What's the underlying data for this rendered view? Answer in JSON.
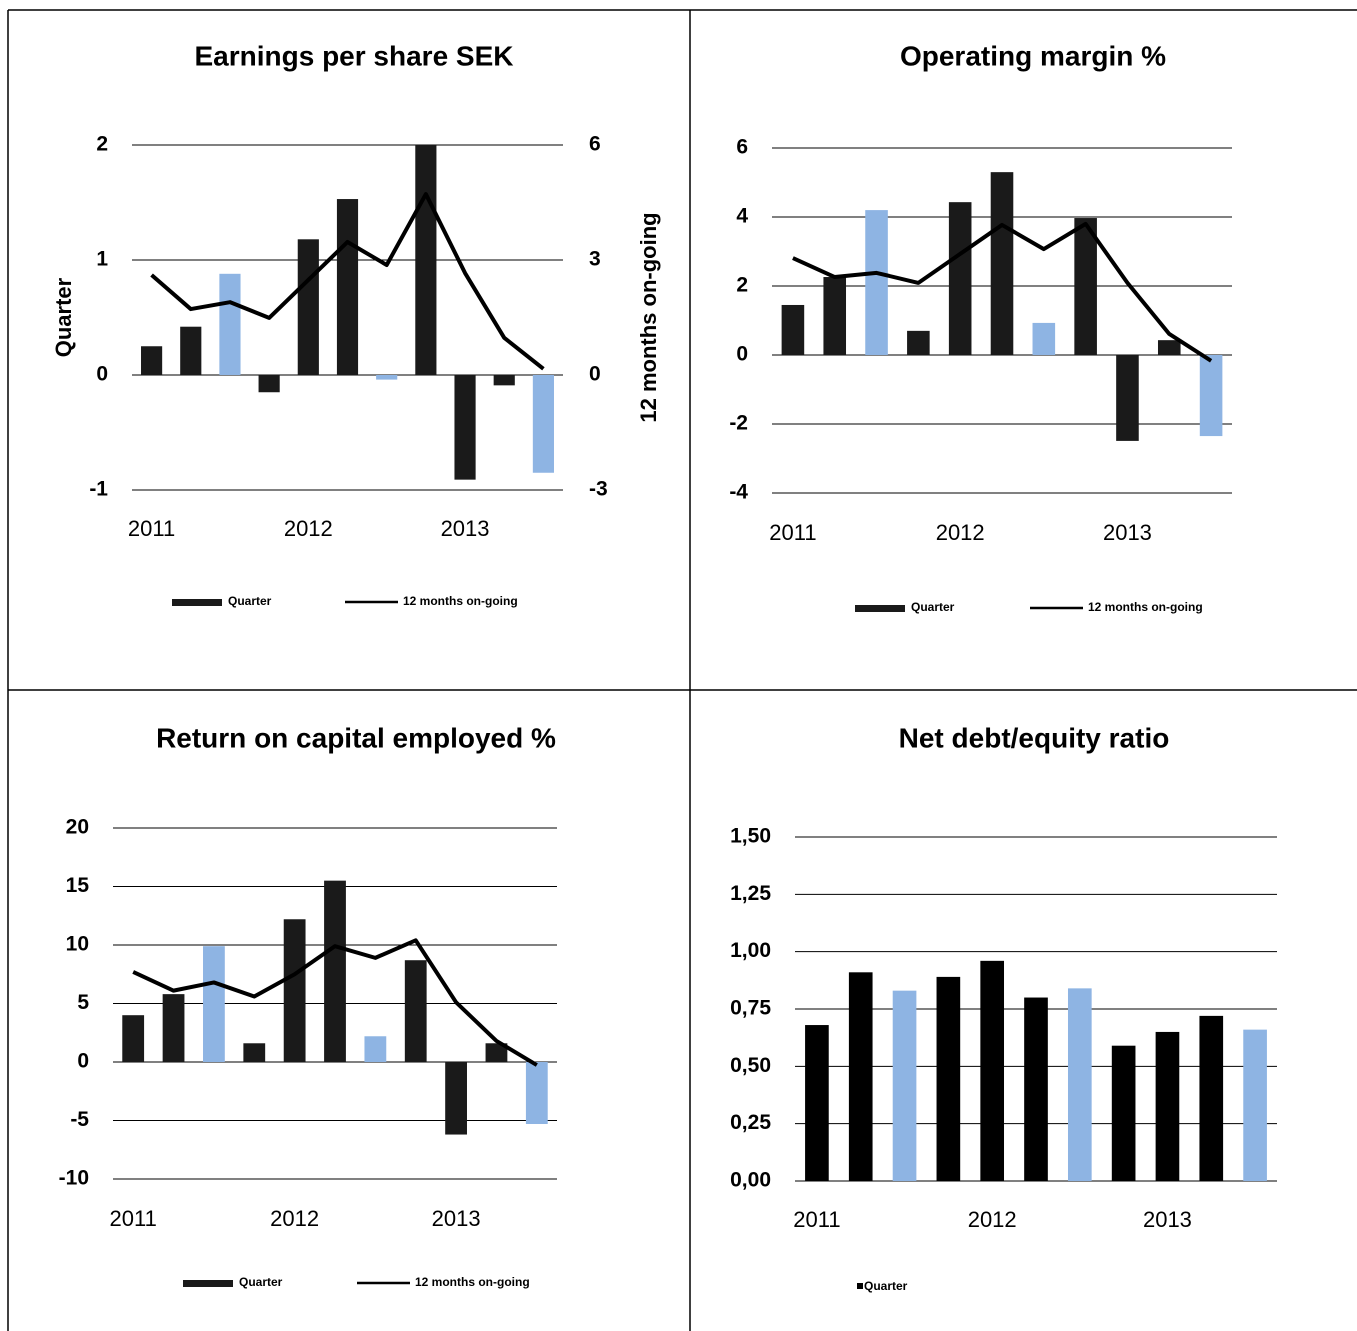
{
  "chart_data": [
    {
      "type": "combo",
      "title": "Earnings per share SEK",
      "y_label": "Quarter",
      "y2_label": "12 months on-going",
      "categories": [
        "2011",
        null,
        null,
        null,
        "2012",
        null,
        null,
        null,
        "2013",
        null,
        null
      ],
      "ylim": [
        -1,
        2
      ],
      "yticks": [
        -1,
        0,
        1,
        2
      ],
      "y2lim": [
        -3,
        6
      ],
      "y2ticks": [
        -3,
        0,
        3,
        6
      ],
      "grid": true,
      "legend": "bottom",
      "series": [
        {
          "name": "Quarter",
          "type": "bar",
          "color": "#1a1a1a",
          "colors": [
            "#1a1a1a",
            "#1a1a1a",
            "#8eb4e3",
            "#1a1a1a",
            "#1a1a1a",
            "#1a1a1a",
            "#8eb4e3",
            "#1a1a1a",
            "#1a1a1a",
            "#1a1a1a",
            "#8eb4e3"
          ],
          "values": [
            0.25,
            0.42,
            0.88,
            -0.15,
            1.18,
            1.53,
            -0.04,
            2.0,
            -0.91,
            -0.09,
            -0.85
          ]
        },
        {
          "name": "12 months on-going",
          "type": "line",
          "color": "#000000",
          "axis": "y2",
          "values": [
            2.61,
            1.72,
            1.9,
            1.49,
            2.48,
            3.47,
            2.87,
            4.72,
            2.66,
            0.97,
            0.16
          ]
        }
      ]
    },
    {
      "type": "combo",
      "title": "Operating margin %",
      "categories": [
        "2011",
        null,
        null,
        null,
        "2012",
        null,
        null,
        null,
        "2013",
        null,
        null
      ],
      "ylim": [
        -4,
        6
      ],
      "yticks": [
        -4,
        -2,
        0,
        2,
        4,
        6
      ],
      "grid": true,
      "legend": "bottom",
      "series": [
        {
          "name": "Quarter",
          "type": "bar",
          "color": "#1a1a1a",
          "colors": [
            "#1a1a1a",
            "#1a1a1a",
            "#8eb4e3",
            "#1a1a1a",
            "#1a1a1a",
            "#1a1a1a",
            "#8eb4e3",
            "#1a1a1a",
            "#1a1a1a",
            "#1a1a1a",
            "#8eb4e3"
          ],
          "values": [
            1.45,
            2.26,
            4.2,
            0.7,
            4.43,
            5.3,
            0.93,
            3.97,
            -2.49,
            0.43,
            -2.35
          ]
        },
        {
          "name": "12 months on-going",
          "type": "line",
          "color": "#000000",
          "values": [
            2.81,
            2.26,
            2.38,
            2.09,
            2.93,
            3.77,
            3.07,
            3.8,
            2.09,
            0.61,
            -0.17
          ]
        }
      ]
    },
    {
      "type": "combo",
      "title": "Return on capital employed %",
      "categories": [
        "2011",
        null,
        null,
        null,
        "2012",
        null,
        null,
        null,
        "2013",
        null,
        null
      ],
      "ylim": [
        -10,
        20
      ],
      "yticks": [
        -10,
        -5,
        0,
        5,
        10,
        15,
        20
      ],
      "grid": true,
      "legend": "bottom",
      "series": [
        {
          "name": "Quarter",
          "type": "bar",
          "color": "#1a1a1a",
          "colors": [
            "#1a1a1a",
            "#1a1a1a",
            "#8eb4e3",
            "#1a1a1a",
            "#1a1a1a",
            "#1a1a1a",
            "#8eb4e3",
            "#1a1a1a",
            "#1a1a1a",
            "#1a1a1a",
            "#8eb4e3"
          ],
          "values": [
            4.0,
            5.8,
            9.9,
            1.6,
            12.2,
            15.5,
            2.2,
            8.7,
            -6.2,
            1.6,
            -5.3
          ]
        },
        {
          "name": "12 months on-going",
          "type": "line",
          "color": "#000000",
          "values": [
            7.7,
            6.1,
            6.8,
            5.6,
            7.5,
            9.9,
            8.9,
            10.4,
            5.1,
            1.8,
            -0.26
          ]
        }
      ]
    },
    {
      "type": "bar",
      "title": "Net debt/equity ratio",
      "categories": [
        "2011",
        null,
        null,
        null,
        "2012",
        null,
        null,
        null,
        "2013",
        null,
        null
      ],
      "ylim": [
        0,
        1.5
      ],
      "yticks": [
        {
          "value": 0,
          "label": "0,00"
        },
        {
          "value": 0.25,
          "label": "0,25"
        },
        {
          "value": 0.5,
          "label": "0,50"
        },
        {
          "value": 0.75,
          "label": "0,75"
        },
        {
          "value": 1,
          "label": "1,00"
        },
        {
          "value": 1.25,
          "label": "1,25"
        },
        {
          "value": 1.5,
          "label": "1,50"
        }
      ],
      "grid": true,
      "legend": "bottom",
      "series": [
        {
          "name": "Quarter",
          "type": "bar",
          "color": "#000000",
          "colors": [
            "#000000",
            "#000000",
            "#8eb4e3",
            "#000000",
            "#000000",
            "#000000",
            "#8eb4e3",
            "#000000",
            "#000000",
            "#000000",
            "#8eb4e3"
          ],
          "values": [
            0.68,
            0.91,
            0.83,
            0.89,
            0.96,
            0.8,
            0.84,
            0.59,
            0.65,
            0.72,
            0.66
          ]
        }
      ]
    }
  ]
}
